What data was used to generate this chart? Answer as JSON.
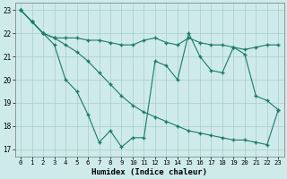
{
  "xlabel": "Humidex (Indice chaleur)",
  "bg_color": "#ceeaea",
  "grid_color": "#aacece",
  "line_color": "#1a7a6a",
  "xlim": [
    -0.5,
    23.5
  ],
  "ylim": [
    16.7,
    23.3
  ],
  "yticks": [
    17,
    18,
    19,
    20,
    21,
    22,
    23
  ],
  "xticks": [
    0,
    1,
    2,
    3,
    4,
    5,
    6,
    7,
    8,
    9,
    10,
    11,
    12,
    13,
    14,
    15,
    16,
    17,
    18,
    19,
    20,
    21,
    22,
    23
  ],
  "series1_y": [
    23.0,
    22.5,
    22.0,
    21.8,
    21.8,
    21.8,
    21.7,
    21.7,
    21.6,
    21.5,
    21.5,
    21.7,
    21.8,
    21.6,
    21.5,
    21.8,
    21.6,
    21.5,
    21.5,
    21.4,
    21.3,
    21.4,
    21.5,
    21.5
  ],
  "series2_y": [
    23.0,
    22.5,
    22.0,
    21.5,
    20.0,
    19.5,
    18.5,
    17.3,
    17.8,
    17.1,
    17.5,
    17.5,
    20.8,
    20.6,
    20.0,
    22.0,
    21.0,
    20.4,
    20.3,
    21.4,
    21.1,
    19.3,
    19.1,
    18.7
  ],
  "series3_y": [
    23.0,
    22.5,
    22.0,
    21.8,
    21.5,
    21.2,
    20.8,
    20.3,
    19.8,
    19.3,
    18.9,
    18.6,
    18.4,
    18.2,
    18.0,
    17.8,
    17.7,
    17.6,
    17.5,
    17.4,
    17.4,
    17.3,
    17.2,
    18.7
  ]
}
